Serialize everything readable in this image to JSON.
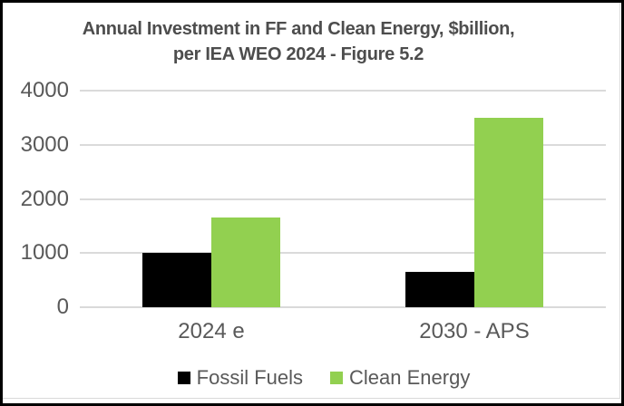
{
  "title": {
    "line1": "Annual Investment in FF and Clean Energy, $billion,",
    "line2": "per IEA WEO 2024 - Figure 5.2"
  },
  "chart_data": {
    "type": "bar",
    "title": "Annual Investment in FF and Clean Energy, $billion, per IEA WEO 2024 - Figure 5.2",
    "categories": [
      "2024 e",
      "2030 - APS"
    ],
    "series": [
      {
        "name": "Fossil Fuels",
        "color": "#000000",
        "values": [
          1000,
          650
        ]
      },
      {
        "name": "Clean Energy",
        "color": "#92d050",
        "values": [
          1650,
          3500
        ]
      }
    ],
    "xlabel": "",
    "ylabel": "",
    "ylim": [
      0,
      4000
    ],
    "yticks": [
      4000,
      3000,
      2000,
      1000,
      0
    ],
    "grid": "horizontal",
    "legend_position": "bottom"
  },
  "colors": {
    "frame_border": "#000000",
    "chart_border": "#d9d9d9",
    "gridline": "#dadada",
    "axis_text": "#595959",
    "title_text": "#4d4d4d",
    "background": "#ffffff"
  }
}
